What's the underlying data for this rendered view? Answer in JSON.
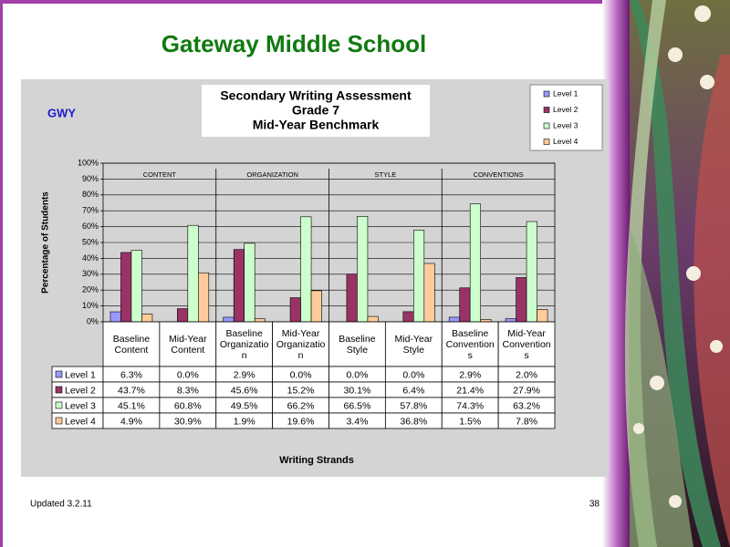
{
  "slide": {
    "title": "Gateway Middle School",
    "footer": "Updated  3.2.11",
    "page_number": "38"
  },
  "chart_data": {
    "type": "bar",
    "title": [
      "Secondary Writing Assessment",
      "Grade 7",
      "Mid-Year Benchmark"
    ],
    "school_code": "GWY",
    "ylabel": "Percentage of Students",
    "xlabel": "Writing Strands",
    "groups": [
      "CONTENT",
      "ORGANIZATION",
      "STYLE",
      "CONVENTIONS"
    ],
    "categories": [
      "Baseline Content",
      "Mid-Year Content",
      "Baseline Organization",
      "Mid-Year Organization",
      "Baseline Style",
      "Mid-Year Style",
      "Baseline Conventions",
      "Mid-Year Conventions"
    ],
    "series": [
      {
        "name": "Level 1",
        "color": "#9999ff",
        "values": [
          6.3,
          0,
          2.9,
          0,
          0,
          0,
          2.9,
          2.0
        ],
        "value_labels": [
          "6.3%",
          "0.0%",
          "2.9%",
          "0.0%",
          "0.0%",
          "0.0%",
          "2.9%",
          "2.0%"
        ]
      },
      {
        "name": "Level 2",
        "color": "#993366",
        "values": [
          43.7,
          8.3,
          45.6,
          15.2,
          30.1,
          6.4,
          21.4,
          27.9
        ],
        "value_labels": [
          "43.7%",
          "8.3%",
          "45.6%",
          "15.2%",
          "30.1%",
          "6.4%",
          "21.4%",
          "27.9%"
        ]
      },
      {
        "name": "Level 3",
        "color": "#ccffcc",
        "values": [
          45.1,
          60.8,
          49.5,
          66.2,
          66.5,
          57.8,
          74.3,
          63.2
        ],
        "value_labels": [
          "45.1%",
          "60.8%",
          "49.5%",
          "66.2%",
          "66.5%",
          "57.8%",
          "74.3%",
          "63.2%"
        ]
      },
      {
        "name": "Level 4",
        "color": "#ffcc99",
        "values": [
          4.9,
          30.9,
          1.9,
          19.6,
          3.4,
          36.8,
          1.5,
          7.8
        ],
        "value_labels": [
          "4.9%",
          "30.9%",
          "1.9%",
          "19.6%",
          "3.4%",
          "36.8%",
          "1.5%",
          "7.8%"
        ]
      }
    ],
    "ylim": [
      0,
      100
    ],
    "yticks": [
      {
        "value": 0,
        "label": "0%"
      },
      {
        "value": 10,
        "label": "10%"
      },
      {
        "value": 20,
        "label": "20%"
      },
      {
        "value": 30,
        "label": "30%"
      },
      {
        "value": 40,
        "label": "40%"
      },
      {
        "value": 50,
        "label": "50%"
      },
      {
        "value": 60,
        "label": "60%"
      },
      {
        "value": 70,
        "label": "70%"
      },
      {
        "value": 80,
        "label": "80%"
      },
      {
        "value": 90,
        "label": "90%"
      },
      {
        "value": 100,
        "label": "100%"
      }
    ],
    "grid": true,
    "legend": "top-right"
  }
}
